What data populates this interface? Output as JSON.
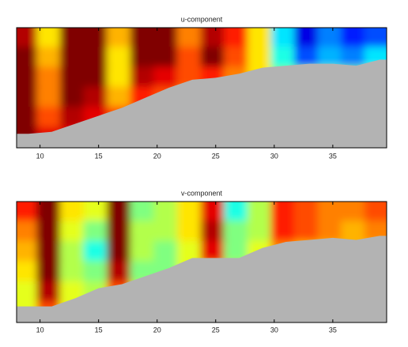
{
  "chart_data": [
    {
      "type": "heatmap",
      "title": "u-component",
      "colormap": "jet",
      "zlim": [
        -1,
        1
      ],
      "y_inverted": true,
      "xlim": [
        8,
        39.6
      ],
      "ylim": [
        0,
        6
      ],
      "xticks": [
        10,
        15,
        20,
        25,
        30,
        35
      ],
      "x": [
        9,
        11,
        13,
        15,
        17,
        19,
        21,
        23,
        25,
        27,
        29,
        31,
        33,
        35,
        37,
        39
      ],
      "y": [
        0.5,
        1.5,
        2.5,
        3.5,
        4.5,
        5.5
      ],
      "z": [
        [
          0.9,
          0.3,
          1,
          1,
          0.4,
          1,
          1,
          0.5,
          0.9,
          0.7,
          0.3,
          -0.3,
          -0.8,
          -0.5,
          -0.7,
          -0.6
        ],
        [
          1,
          0.4,
          1,
          1,
          0.3,
          1,
          1,
          0.6,
          1,
          0.6,
          0.3,
          -0.2,
          -0.6,
          -0.4,
          -0.5,
          -0.3
        ],
        [
          1,
          0.5,
          1,
          1,
          0.3,
          0.9,
          0.8,
          0.6,
          0.7,
          0.5,
          0.3,
          0,
          0,
          0,
          0,
          0
        ],
        [
          1,
          0.5,
          1,
          0.9,
          0.4,
          0.7,
          0.6,
          0.5,
          0.6,
          0.5,
          0.4,
          0.2,
          0.2,
          0.2,
          0.2,
          0.2
        ],
        [
          1,
          0.6,
          0.9,
          0.8,
          0.6,
          0.6,
          0.5,
          0.5,
          0.5,
          0.5,
          0.4,
          0.3,
          0.3,
          0.3,
          0.3,
          0.3
        ],
        [
          1,
          0.8,
          0.8,
          0.7,
          0.6,
          0.6,
          0.5,
          0.5,
          0.5,
          0.5,
          0.4,
          0.3,
          0.3,
          0.3,
          0.3,
          0.3
        ]
      ],
      "bottom": [
        5.3,
        5.2,
        4.8,
        4.4,
        4.0,
        3.5,
        3.0,
        2.6,
        2.5,
        2.3,
        2.0,
        1.9,
        1.8,
        1.8,
        1.9,
        1.6
      ],
      "bottom_color": "#b3b3b3"
    },
    {
      "type": "heatmap",
      "title": "v-component",
      "colormap": "jet",
      "zlim": [
        -1,
        1
      ],
      "y_inverted": true,
      "xlim": [
        8,
        39.6
      ],
      "ylim": [
        0,
        6
      ],
      "xticks": [
        10,
        15,
        20,
        25,
        30,
        35
      ],
      "x": [
        9,
        11,
        13,
        15,
        17,
        19,
        21,
        23,
        25,
        27,
        29,
        31,
        33,
        35,
        37,
        39
      ],
      "y": [
        0.5,
        1.5,
        2.5,
        3.5,
        4.5,
        5.5
      ],
      "z": [
        [
          0.7,
          1,
          0.3,
          0.2,
          1,
          0,
          0.1,
          0.3,
          0.8,
          -0.2,
          0.1,
          0.7,
          0.6,
          0.5,
          0.5,
          0.6
        ],
        [
          0.5,
          1,
          0.2,
          0,
          1,
          0.1,
          0.1,
          0.3,
          0.9,
          0,
          0.1,
          0.7,
          0.6,
          0.5,
          0.4,
          0.5
        ],
        [
          0.4,
          1,
          0.1,
          -0.2,
          1,
          0.1,
          0,
          0.2,
          0.8,
          0,
          0.2,
          0.5,
          0.4,
          0.4,
          0.4,
          0.4
        ],
        [
          0.3,
          1,
          0.1,
          0,
          0.9,
          0,
          0,
          0.2,
          0.5,
          0.1,
          0.2,
          0.4,
          0.4,
          0.4,
          0.4,
          0.4
        ],
        [
          0.2,
          0.9,
          0.2,
          0.1,
          0.6,
          0.1,
          0,
          0.2,
          0.3,
          0.2,
          0.2,
          0.3,
          0.3,
          0.3,
          0.3,
          0.3
        ],
        [
          0.2,
          0.6,
          0.2,
          0.2,
          0.4,
          0.2,
          0.2,
          0.2,
          0.3,
          0.3,
          0.3,
          0.3,
          0.3,
          0.3,
          0.3,
          0.3
        ]
      ],
      "bottom": [
        5.2,
        5.2,
        4.8,
        4.3,
        4.1,
        3.7,
        3.3,
        2.8,
        2.8,
        2.8,
        2.3,
        2.0,
        1.9,
        1.8,
        1.9,
        1.7
      ],
      "bottom_color": "#b3b3b3"
    }
  ]
}
